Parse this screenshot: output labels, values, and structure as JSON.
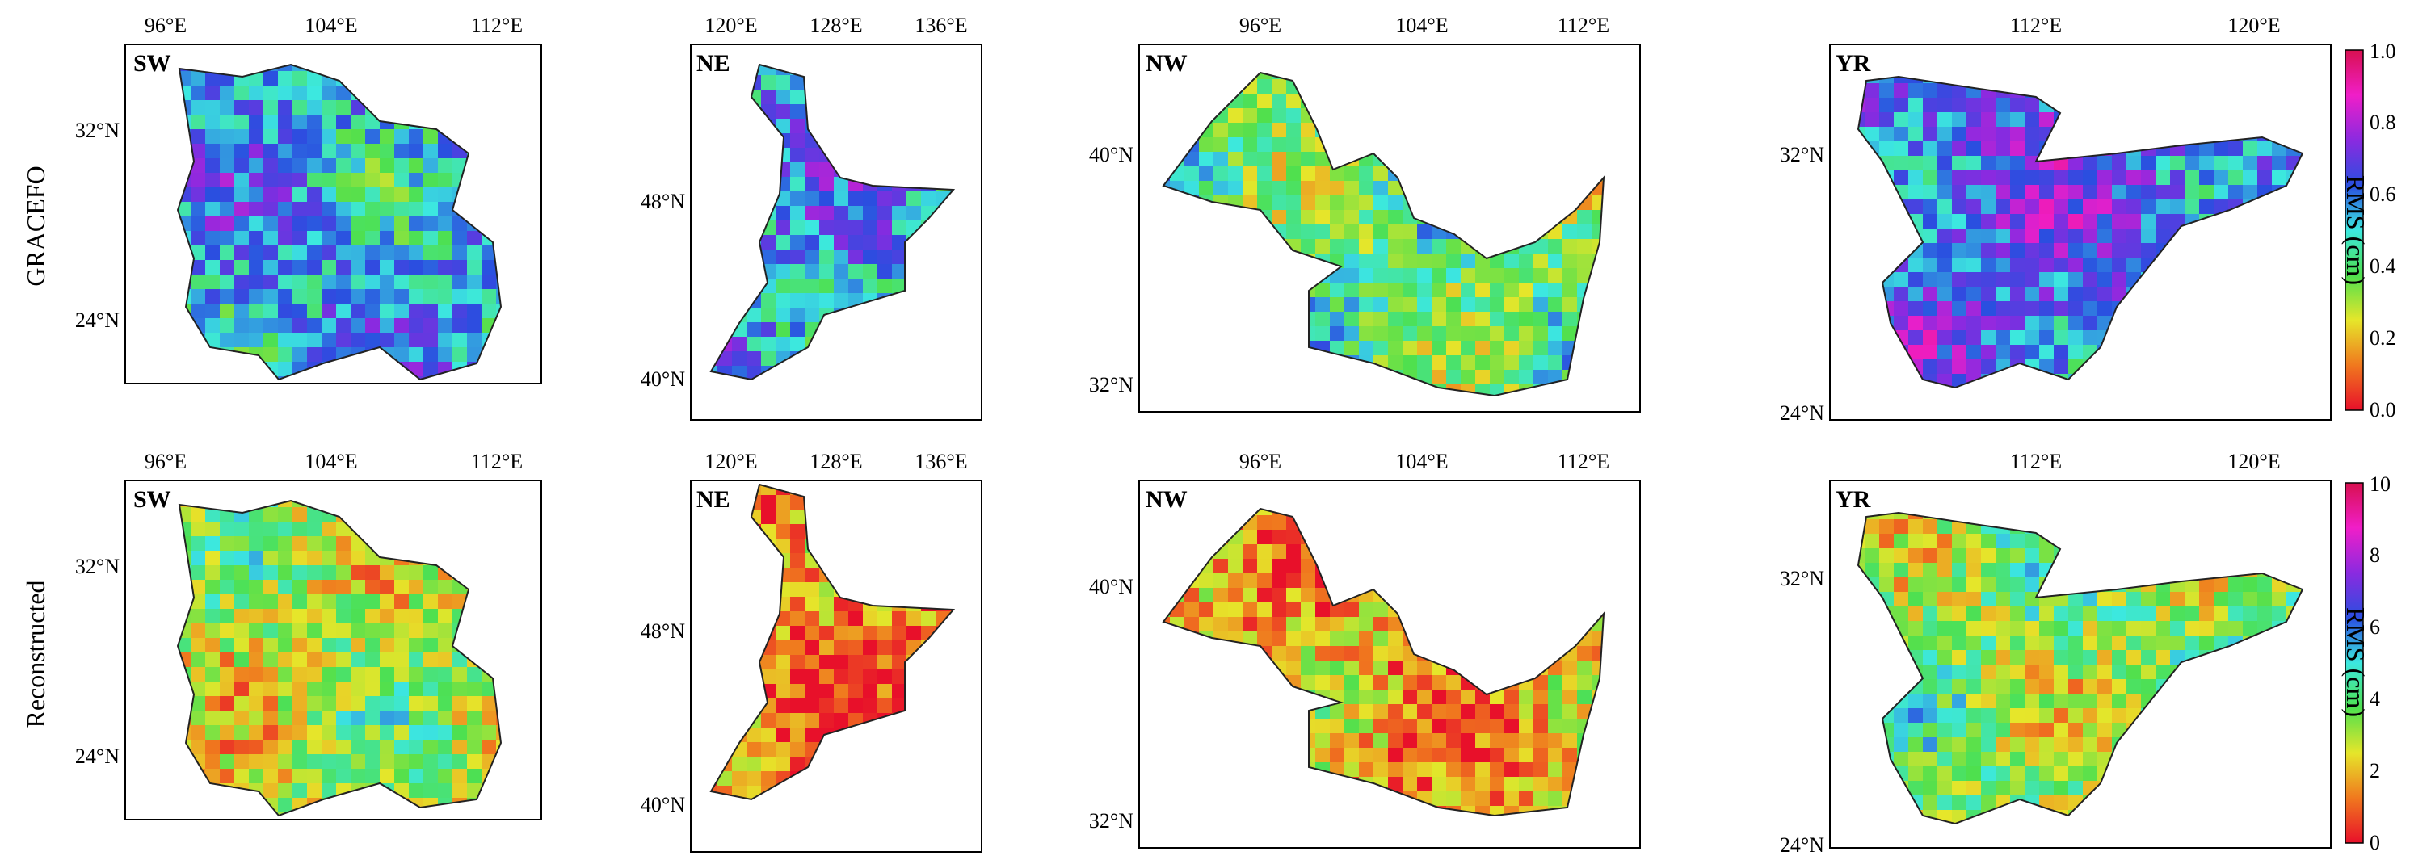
{
  "row_labels": [
    "GRACEFO",
    "Reconstructed"
  ],
  "panels": [
    {
      "id": "SW",
      "label": "SW",
      "lon_ticks": [
        "96°E",
        "104°E",
        "112°E"
      ],
      "lat_ticks": [
        "32°N",
        "24°N"
      ]
    },
    {
      "id": "NE",
      "label": "NE",
      "lon_ticks": [
        "120°E",
        "128°E",
        "136°E"
      ],
      "lat_ticks": [
        "48°N",
        "40°N"
      ]
    },
    {
      "id": "NW",
      "label": "NW",
      "lon_ticks": [
        "96°E",
        "104°E",
        "112°E"
      ],
      "lat_ticks": [
        "40°N",
        "32°N"
      ]
    },
    {
      "id": "YR",
      "label": "YR",
      "lon_ticks": [
        "112°E",
        "120°E"
      ],
      "lat_ticks": [
        "32°N",
        "24°N"
      ]
    }
  ],
  "colorbars": [
    {
      "row": "GRACEFO",
      "label": "RMS (cm)",
      "ticks": [
        "0.0",
        "0.2",
        "0.4",
        "0.6",
        "0.8",
        "1.0"
      ],
      "range": [
        0.0,
        1.0
      ]
    },
    {
      "row": "Reconstructed",
      "label": "RMS (cm)",
      "ticks": [
        "0",
        "2",
        "4",
        "6",
        "8",
        "10"
      ],
      "range": [
        0,
        10
      ]
    }
  ],
  "colormap": [
    "#e8102a",
    "#f0781e",
    "#e6e62a",
    "#4ee04e",
    "#3ce8e0",
    "#2a4ee0",
    "#8a2ae0",
    "#f01ec8",
    "#d81050"
  ],
  "dominant_levels": {
    "GRACEFO": {
      "SW": 0.55,
      "NE": 0.55,
      "NW": 0.4,
      "YR": 0.65
    },
    "Reconstructed": {
      "SW": 3.0,
      "NE": 1.2,
      "NW": 1.8,
      "YR": 3.5
    }
  }
}
